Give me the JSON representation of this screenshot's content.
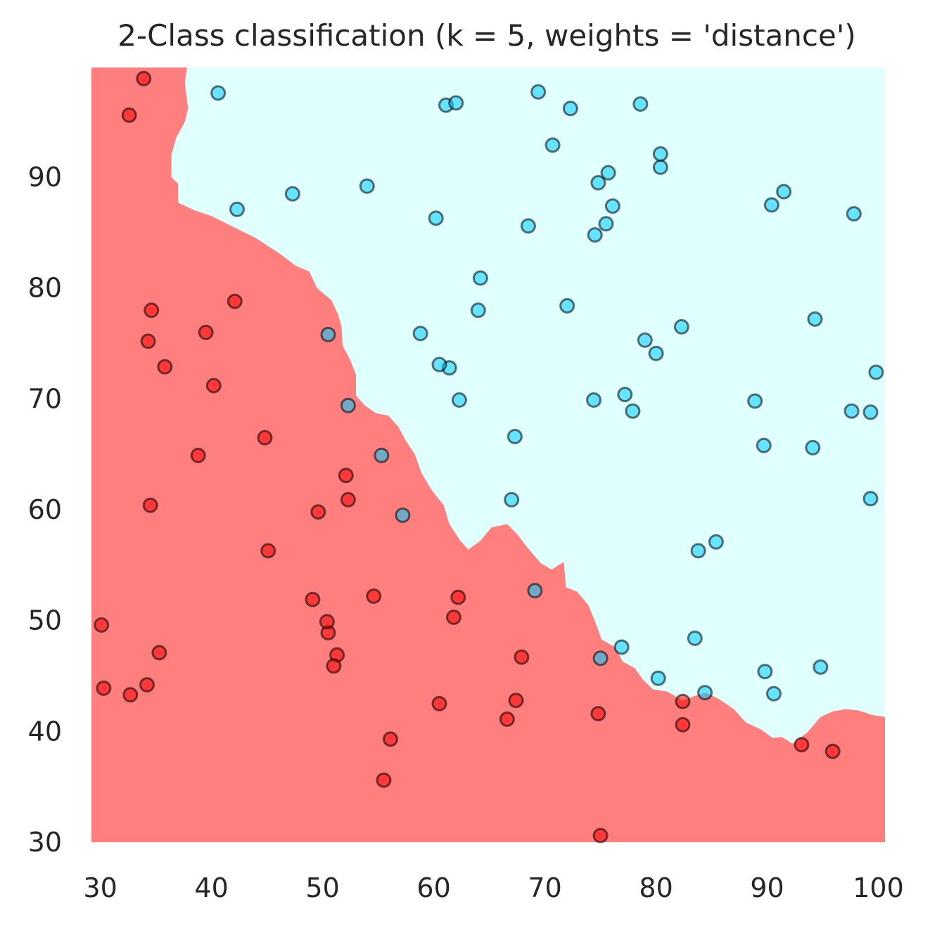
{
  "chart_data": {
    "type": "scatter",
    "title": "2-Class classification (k = 5, weights = 'distance')",
    "xlabel": "",
    "ylabel": "",
    "xlim": [
      29.2,
      100.6
    ],
    "ylim": [
      30,
      99.9
    ],
    "xticks": [
      30,
      40,
      50,
      60,
      70,
      80,
      90,
      100
    ],
    "yticks": [
      30,
      40,
      50,
      60,
      70,
      80,
      90
    ],
    "grid": false,
    "legend": "none",
    "colors": {
      "class0_region": "#ff7f7f",
      "class1_region": "#e0ffff",
      "class0_point": "#ff0000",
      "class1_point": "#00ccff",
      "point_edge": "#000000"
    },
    "decision_boundary": [
      [
        37.8,
        99.9
      ],
      [
        37.6,
        98.5
      ],
      [
        37.9,
        96.2
      ],
      [
        37.6,
        95.0
      ],
      [
        36.8,
        93.5
      ],
      [
        36.4,
        92.0
      ],
      [
        36.4,
        90.0
      ],
      [
        37.0,
        89.4
      ],
      [
        37.0,
        87.7
      ],
      [
        38.5,
        87.0
      ],
      [
        40.0,
        86.5
      ],
      [
        42.0,
        85.5
      ],
      [
        44.0,
        84.5
      ],
      [
        46.0,
        83.2
      ],
      [
        47.6,
        82.0
      ],
      [
        48.8,
        81.5
      ],
      [
        49.5,
        80.0
      ],
      [
        50.8,
        78.9
      ],
      [
        51.4,
        77.6
      ],
      [
        51.7,
        76.5
      ],
      [
        51.8,
        74.8
      ],
      [
        52.4,
        73.7
      ],
      [
        53.0,
        72.2
      ],
      [
        53.0,
        70.3
      ],
      [
        53.8,
        69.4
      ],
      [
        54.8,
        68.7
      ],
      [
        55.9,
        68.5
      ],
      [
        56.8,
        67.5
      ],
      [
        57.5,
        66.2
      ],
      [
        58.3,
        65.0
      ],
      [
        58.9,
        63.3
      ],
      [
        59.8,
        61.8
      ],
      [
        60.9,
        60.4
      ],
      [
        61.4,
        58.7
      ],
      [
        62.4,
        57.2
      ],
      [
        63.1,
        56.4
      ],
      [
        64.2,
        57.2
      ],
      [
        65.2,
        58.4
      ],
      [
        66.6,
        58.7
      ],
      [
        67.5,
        57.8
      ],
      [
        68.5,
        56.5
      ],
      [
        69.6,
        55.2
      ],
      [
        70.6,
        54.6
      ],
      [
        71.7,
        55.3
      ],
      [
        71.9,
        53.0
      ],
      [
        72.9,
        52.6
      ],
      [
        73.9,
        51.4
      ],
      [
        74.6,
        49.7
      ],
      [
        75.1,
        48.3
      ],
      [
        76.3,
        47.6
      ],
      [
        77.0,
        46.3
      ],
      [
        78.1,
        45.7
      ],
      [
        78.8,
        44.7
      ],
      [
        79.7,
        43.8
      ],
      [
        81.0,
        43.6
      ],
      [
        82.4,
        42.8
      ],
      [
        83.5,
        43.2
      ],
      [
        84.5,
        43.5
      ],
      [
        85.7,
        42.9
      ],
      [
        87.0,
        42.0
      ],
      [
        88.1,
        40.8
      ],
      [
        89.4,
        40.2
      ],
      [
        90.5,
        39.4
      ],
      [
        91.3,
        39.5
      ],
      [
        92.3,
        38.9
      ],
      [
        93.6,
        39.9
      ],
      [
        94.8,
        41.3
      ],
      [
        95.9,
        41.8
      ],
      [
        97.0,
        42.0
      ],
      [
        98.2,
        41.9
      ],
      [
        99.4,
        41.5
      ],
      [
        100.6,
        41.3
      ]
    ],
    "series": [
      {
        "label": "0",
        "points": [
          [
            34.6,
            78.0
          ],
          [
            30.3,
            43.9
          ],
          [
            35.8,
            72.9
          ],
          [
            60.2,
            86.3
          ],
          [
            79.0,
            75.3
          ],
          [
            45.1,
            56.3
          ],
          [
            61.1,
            96.5
          ],
          [
            75.0,
            46.6
          ],
          [
            76.1,
            87.4
          ],
          [
            84.4,
            43.5
          ],
          [
            95.9,
            38.2
          ],
          [
            75.0,
            30.6
          ],
          [
            82.3,
            76.5
          ],
          [
            69.4,
            97.7
          ],
          [
            39.5,
            76.0
          ],
          [
            54.0,
            89.2
          ],
          [
            69.1,
            52.7
          ],
          [
            67.9,
            46.7
          ],
          [
            70.7,
            92.9
          ],
          [
            76.9,
            47.6
          ],
          [
            67.4,
            42.8
          ],
          [
            89.7,
            65.8
          ],
          [
            50.5,
            48.9
          ],
          [
            34.2,
            44.2
          ],
          [
            77.9,
            68.9
          ],
          [
            62.3,
            69.9
          ],
          [
            80.2,
            44.8
          ],
          [
            93.1,
            38.8
          ],
          [
            61.8,
            50.3
          ],
          [
            38.8,
            64.9
          ],
          [
            61.4,
            72.8
          ],
          [
            85.4,
            57.1
          ],
          [
            52.1,
            63.1
          ],
          [
            52.3,
            60.9
          ],
          [
            40.2,
            71.2
          ],
          [
            54.6,
            52.2
          ],
          [
            33.9,
            98.9
          ],
          [
            64.0,
            78.0
          ],
          [
            72.3,
            96.2
          ],
          [
            60.5,
            73.1
          ],
          [
            58.8,
            75.9
          ],
          [
            99.8,
            72.4
          ],
          [
            47.3,
            88.5
          ],
          [
            50.5,
            75.8
          ],
          [
            60.5,
            42.5
          ],
          [
            49.6,
            59.8
          ],
          [
            82.4,
            42.7
          ],
          [
            88.9,
            69.8
          ],
          [
            94.3,
            77.2
          ],
          [
            67.3,
            66.6
          ],
          [
            57.2,
            59.5
          ],
          [
            80.4,
            90.9
          ],
          [
            68.5,
            85.6
          ],
          [
            42.1,
            78.8
          ],
          [
            75.5,
            85.8
          ],
          [
            78.6,
            96.6
          ],
          [
            52.3,
            69.4
          ],
          [
            94.1,
            65.6
          ],
          [
            90.4,
            87.5
          ],
          [
            55.5,
            35.6
          ],
          [
            74.5,
            84.8
          ],
          [
            89.8,
            45.4
          ],
          [
            83.5,
            48.4
          ],
          [
            42.3,
            87.1
          ],
          [
            99.3,
            68.8
          ],
          [
            55.3,
            64.9
          ],
          [
            74.8,
            89.5
          ],
          [
            64.2,
            80.9
          ],
          [
            74.8,
            41.6
          ],
          [
            99.3,
            61.0
          ],
          [
            82.4,
            40.6
          ],
          [
            66.6,
            41.1
          ],
          [
            51.3,
            46.9
          ],
          [
            51.0,
            45.9
          ],
          [
            91.5,
            88.7
          ],
          [
            80.0,
            74.1
          ],
          [
            40.6,
            97.6
          ],
          [
            74.4,
            69.9
          ],
          [
            67.0,
            60.9
          ],
          [
            90.6,
            43.4
          ],
          [
            97.6,
            68.9
          ],
          [
            32.7,
            43.3
          ],
          [
            97.8,
            86.7
          ],
          [
            30.1,
            49.6
          ],
          [
            34.5,
            60.4
          ],
          [
            35.3,
            47.1
          ],
          [
            94.8,
            45.8
          ],
          [
            75.7,
            90.4
          ],
          [
            79.8,
            72.3
          ],
          [
            56.1,
            39.3
          ],
          [
            59.8,
            86.4
          ],
          [
            30.1,
            49.6
          ],
          [
            50.4,
            49.9
          ],
          [
            62.0,
            96.7
          ],
          [
            77.2,
            70.4
          ],
          [
            49.1,
            51.9
          ],
          [
            72.0,
            78.4
          ],
          [
            83.8,
            56.3
          ],
          [
            34.3,
            75.2
          ],
          [
            44.8,
            66.5
          ]
        ],
        "class0": [
          [
            34.6,
            78.0
          ],
          [
            30.3,
            43.9
          ],
          [
            35.8,
            72.9
          ],
          [
            45.1,
            56.3
          ],
          [
            95.9,
            38.2
          ],
          [
            75.0,
            30.6
          ],
          [
            39.5,
            76.0
          ],
          [
            67.9,
            46.7
          ],
          [
            67.4,
            42.8
          ],
          [
            50.5,
            48.9
          ],
          [
            34.2,
            44.2
          ],
          [
            93.1,
            38.8
          ],
          [
            61.8,
            50.3
          ],
          [
            38.8,
            64.9
          ],
          [
            52.1,
            63.1
          ],
          [
            52.3,
            60.9
          ],
          [
            40.2,
            71.2
          ],
          [
            54.6,
            52.2
          ],
          [
            33.9,
            98.9
          ],
          [
            60.5,
            42.5
          ],
          [
            49.6,
            59.8
          ],
          [
            82.4,
            42.7
          ],
          [
            42.1,
            78.8
          ],
          [
            55.5,
            35.6
          ],
          [
            74.8,
            41.6
          ],
          [
            82.4,
            40.6
          ],
          [
            66.6,
            41.1
          ],
          [
            51.3,
            46.9
          ],
          [
            51.0,
            45.9
          ],
          [
            32.7,
            43.3
          ],
          [
            30.1,
            49.6
          ],
          [
            34.5,
            60.4
          ],
          [
            35.3,
            47.1
          ],
          [
            56.1,
            39.3
          ],
          [
            50.4,
            49.9
          ],
          [
            49.1,
            51.9
          ],
          [
            34.3,
            75.2
          ],
          [
            44.8,
            66.5
          ],
          [
            32.6,
            95.6
          ],
          [
            62.2,
            52.1
          ]
        ],
        "class1": [
          [
            60.2,
            86.3
          ],
          [
            79.0,
            75.3
          ],
          [
            61.1,
            96.5
          ],
          [
            75.0,
            46.6
          ],
          [
            76.1,
            87.4
          ],
          [
            84.4,
            43.5
          ],
          [
            82.3,
            76.5
          ],
          [
            69.4,
            97.7
          ],
          [
            54.0,
            89.2
          ],
          [
            69.1,
            52.7
          ],
          [
            70.7,
            92.9
          ],
          [
            76.9,
            47.6
          ],
          [
            89.7,
            65.8
          ],
          [
            77.9,
            68.9
          ],
          [
            62.3,
            69.9
          ],
          [
            80.2,
            44.8
          ],
          [
            61.4,
            72.8
          ],
          [
            85.4,
            57.1
          ],
          [
            64.0,
            78.0
          ],
          [
            72.3,
            96.2
          ],
          [
            60.5,
            73.1
          ],
          [
            58.8,
            75.9
          ],
          [
            99.8,
            72.4
          ],
          [
            47.3,
            88.5
          ],
          [
            50.5,
            75.8
          ],
          [
            88.9,
            69.8
          ],
          [
            94.3,
            77.2
          ],
          [
            67.3,
            66.6
          ],
          [
            57.2,
            59.5
          ],
          [
            80.4,
            90.9
          ],
          [
            68.5,
            85.6
          ],
          [
            75.5,
            85.8
          ],
          [
            78.6,
            96.6
          ],
          [
            52.3,
            69.4
          ],
          [
            94.1,
            65.6
          ],
          [
            90.4,
            87.5
          ],
          [
            74.5,
            84.8
          ],
          [
            89.8,
            45.4
          ],
          [
            83.5,
            48.4
          ],
          [
            42.3,
            87.1
          ],
          [
            99.3,
            68.8
          ],
          [
            55.3,
            64.9
          ],
          [
            74.8,
            89.5
          ],
          [
            64.2,
            80.9
          ],
          [
            99.3,
            61.0
          ],
          [
            91.5,
            88.7
          ],
          [
            80.0,
            74.1
          ],
          [
            40.6,
            97.6
          ],
          [
            74.4,
            69.9
          ],
          [
            67.0,
            60.9
          ],
          [
            90.6,
            43.4
          ],
          [
            97.6,
            68.9
          ],
          [
            97.8,
            86.7
          ],
          [
            94.8,
            45.8
          ],
          [
            75.7,
            90.4
          ],
          [
            62.0,
            96.7
          ],
          [
            77.2,
            70.4
          ],
          [
            72.0,
            78.4
          ],
          [
            83.8,
            56.3
          ],
          [
            80.4,
            92.1
          ]
        ]
      }
    ]
  }
}
